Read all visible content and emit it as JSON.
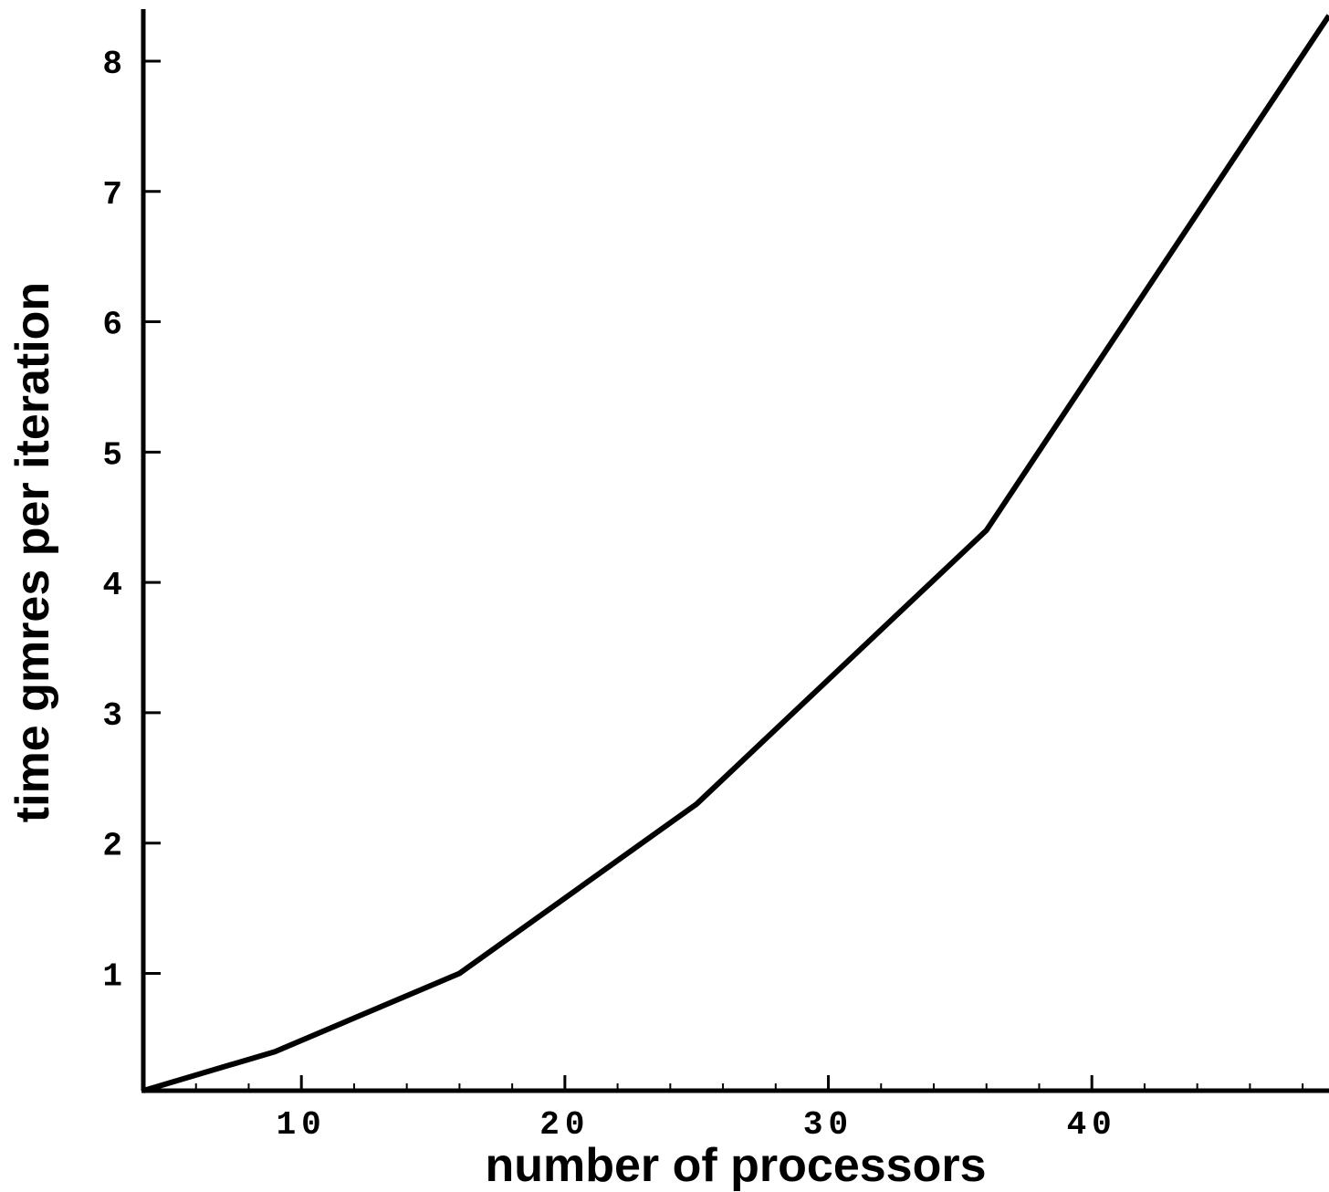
{
  "chart_data": {
    "type": "line",
    "title": "",
    "xlabel": "number of processors",
    "ylabel": "time gmres per iteration",
    "xlim": [
      4,
      49
    ],
    "ylim": [
      0.1,
      8.35
    ],
    "x_ticks": [
      10,
      20,
      30,
      40
    ],
    "x_tick_labels": [
      "10",
      "20",
      "30",
      "40"
    ],
    "x_minor_step": 2,
    "y_ticks": [
      1,
      2,
      3,
      4,
      5,
      6,
      7,
      8
    ],
    "y_tick_labels": [
      "1",
      "2",
      "3",
      "4",
      "5",
      "6",
      "7",
      "8"
    ],
    "grid": false,
    "line_color": "#000000",
    "series": [
      {
        "x": [
          4,
          9,
          16,
          25,
          36,
          49
        ],
        "y": [
          0.1,
          0.4,
          1.0,
          2.3,
          4.4,
          8.35
        ]
      }
    ]
  }
}
